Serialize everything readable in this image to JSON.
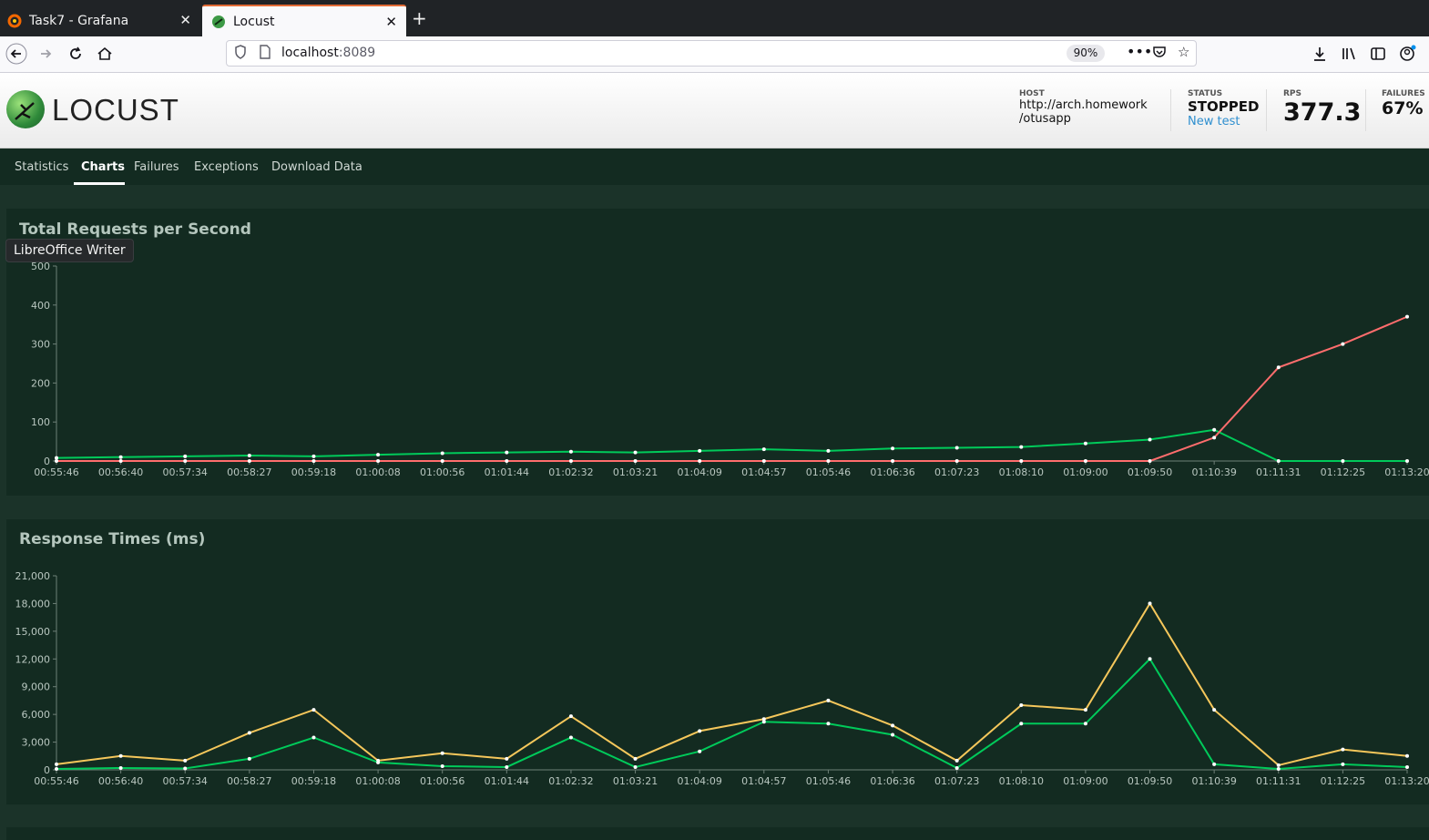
{
  "browser": {
    "tabs": [
      {
        "title": "Task7 - Grafana",
        "favicon": "grafana-icon",
        "active": false
      },
      {
        "title": "Locust",
        "favicon": "locust-icon",
        "active": true
      }
    ],
    "url_host": "localhost",
    "url_port": ":8089",
    "zoom": "90%"
  },
  "locust": {
    "brand": "LOCUST",
    "host_label": "HOST",
    "host_value_line1": "http://arch.homework",
    "host_value_line2": "/otusapp",
    "status_label": "STATUS",
    "status_value": "STOPPED",
    "new_test": "New test",
    "rps_label": "RPS",
    "rps_value": "377.3",
    "failures_label": "FAILURES",
    "failures_value": "67%"
  },
  "nav": [
    {
      "label": "Statistics",
      "active": false
    },
    {
      "label": "Charts",
      "active": true
    },
    {
      "label": "Failures",
      "active": false
    },
    {
      "label": "Exceptions",
      "active": false
    },
    {
      "label": "Download Data",
      "active": false
    }
  ],
  "tooltip": "LibreOffice Writer",
  "colors": {
    "rps": "#00ca5a",
    "failures": "#ff6d6d",
    "p95": "#eeff00",
    "median": "#00ca5a",
    "panel": "#132b21"
  },
  "chart_data": [
    {
      "type": "line",
      "title": "Total Requests per Second",
      "ylim": [
        0,
        500
      ],
      "y_ticks": [
        "0",
        "100",
        "200",
        "300",
        "400",
        "500"
      ],
      "x_ticks": [
        "00:55:46",
        "00:56:40",
        "00:57:34",
        "00:58:27",
        "00:59:18",
        "01:00:08",
        "01:00:56",
        "01:01:44",
        "01:02:32",
        "01:03:21",
        "01:04:09",
        "01:04:57",
        "01:05:46",
        "01:06:36",
        "01:07:23",
        "01:08:10",
        "01:09:00",
        "01:09:50",
        "01:10:39",
        "01:11:31",
        "01:12:25",
        "01:13:20"
      ],
      "series": [
        {
          "color": "#00ca5a",
          "values": [
            8,
            10,
            12,
            14,
            12,
            16,
            20,
            22,
            24,
            22,
            26,
            30,
            26,
            32,
            34,
            36,
            45,
            55,
            80,
            0,
            0,
            0
          ]
        },
        {
          "color": "#ff6d6d",
          "values": [
            0,
            0,
            0,
            0,
            0,
            0,
            0,
            0,
            0,
            0,
            0,
            0,
            0,
            0,
            0,
            0,
            0,
            0,
            60,
            240,
            300,
            370
          ]
        }
      ]
    },
    {
      "type": "line",
      "title": "Response Times (ms)",
      "ylim": [
        0,
        21000
      ],
      "y_ticks": [
        "0",
        "3,000",
        "6,000",
        "9,000",
        "12,000",
        "15,000",
        "18,000",
        "21,000"
      ],
      "x_ticks": [
        "00:55:46",
        "00:56:40",
        "00:57:34",
        "00:58:27",
        "00:59:18",
        "01:00:08",
        "01:00:56",
        "01:01:44",
        "01:02:32",
        "01:03:21",
        "01:04:09",
        "01:04:57",
        "01:05:46",
        "01:06:36",
        "01:07:23",
        "01:08:10",
        "01:09:00",
        "01:09:50",
        "01:10:39",
        "01:11:31",
        "01:12:25",
        "01:13:20"
      ],
      "series": [
        {
          "color": "#f5c75b",
          "values": [
            600,
            1500,
            1000,
            4000,
            6500,
            1000,
            1800,
            1200,
            5800,
            1200,
            4200,
            5500,
            7500,
            4800,
            1000,
            7000,
            6500,
            18000,
            6500,
            500,
            2200,
            1500
          ]
        },
        {
          "color": "#00ca5a",
          "values": [
            100,
            200,
            150,
            1200,
            3500,
            800,
            400,
            300,
            3500,
            300,
            2000,
            5200,
            5000,
            3800,
            200,
            5000,
            5000,
            12000,
            600,
            100,
            600,
            300
          ]
        }
      ]
    }
  ]
}
